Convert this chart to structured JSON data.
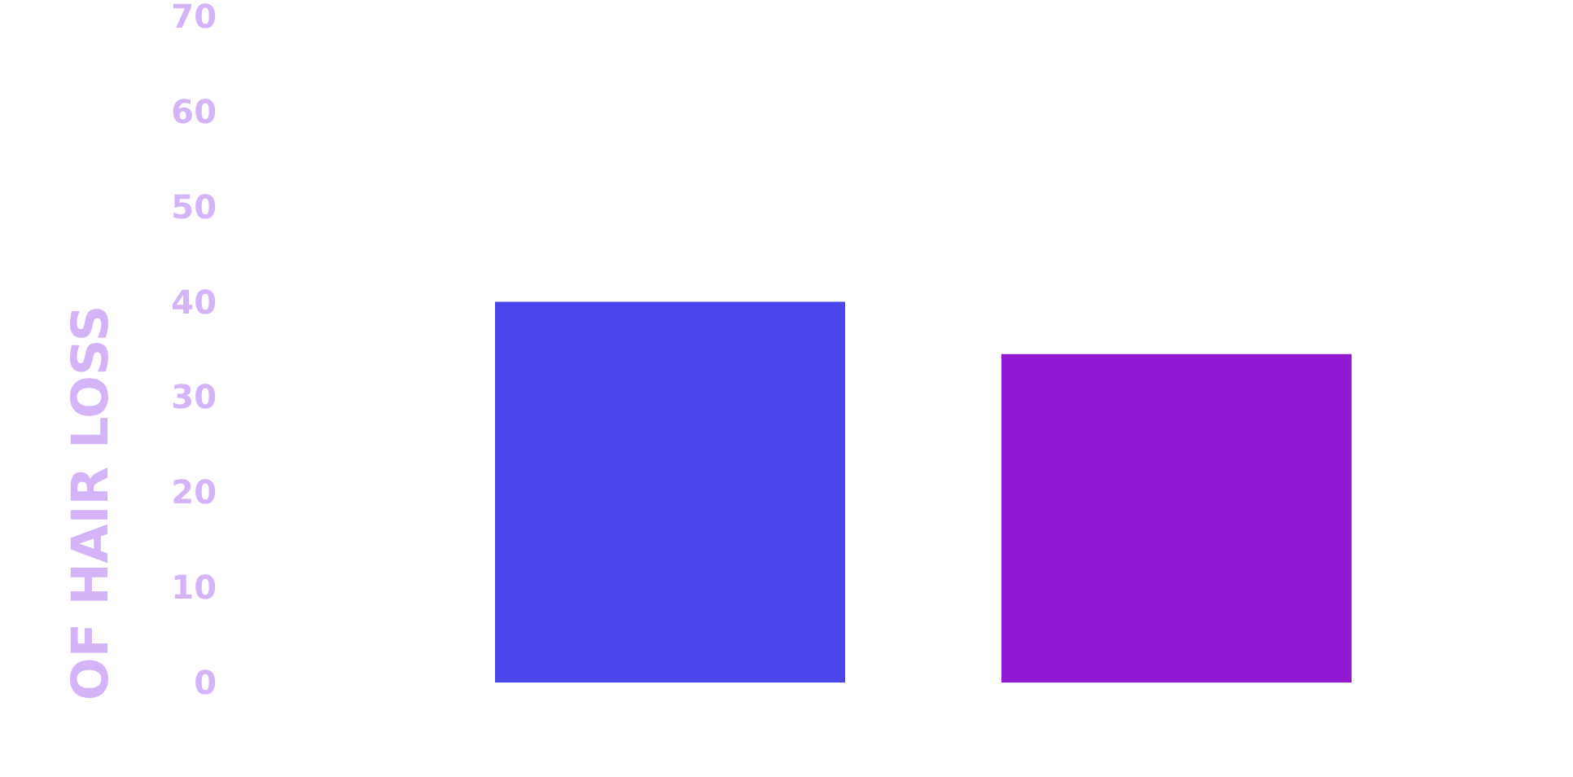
{
  "chart_data": {
    "type": "bar",
    "ylabel": "OF HAIR LOSS",
    "categories": [
      null,
      null
    ],
    "values": [
      40,
      34.5
    ],
    "colors": [
      "#4b46eb",
      "#9318d4"
    ],
    "ylim": [
      0,
      70
    ],
    "yticks": [
      0,
      10,
      20,
      30,
      40,
      50,
      60,
      70
    ],
    "tick_labels": "y"
  }
}
